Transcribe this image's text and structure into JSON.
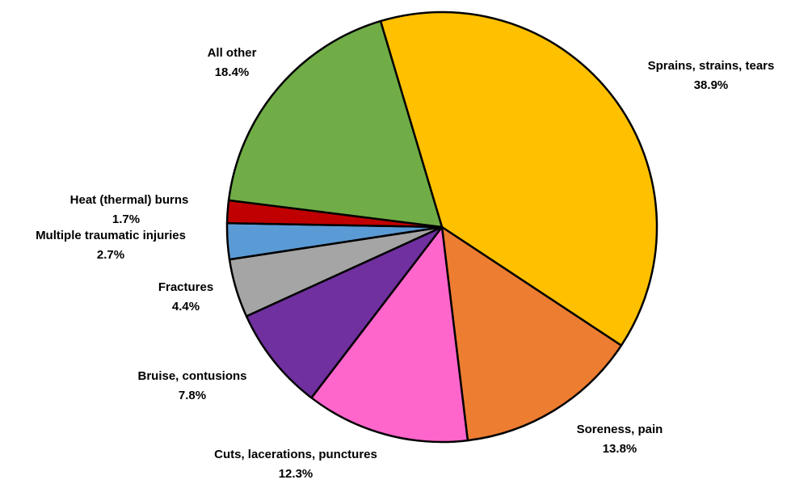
{
  "chart_data": {
    "type": "pie",
    "categories": [
      "Sprains, strains, tears",
      "Soreness, pain",
      "Cuts, lacerations, punctures",
      "Bruise, contusions",
      "Fractures",
      "Multiple traumatic injuries",
      "Heat (thermal) burns",
      "All other"
    ],
    "values": [
      38.9,
      13.8,
      12.3,
      7.8,
      4.4,
      2.7,
      1.7,
      18.4
    ],
    "value_labels": [
      "38.9%",
      "13.8%",
      "12.3%",
      "7.8%",
      "4.4%",
      "2.7%",
      "1.7%",
      "18.4%"
    ],
    "colors": [
      "#FFC000",
      "#ED7D31",
      "#FF66CC",
      "#7030A0",
      "#A5A5A5",
      "#5B9BD5",
      "#C00000",
      "#70AD47"
    ]
  }
}
